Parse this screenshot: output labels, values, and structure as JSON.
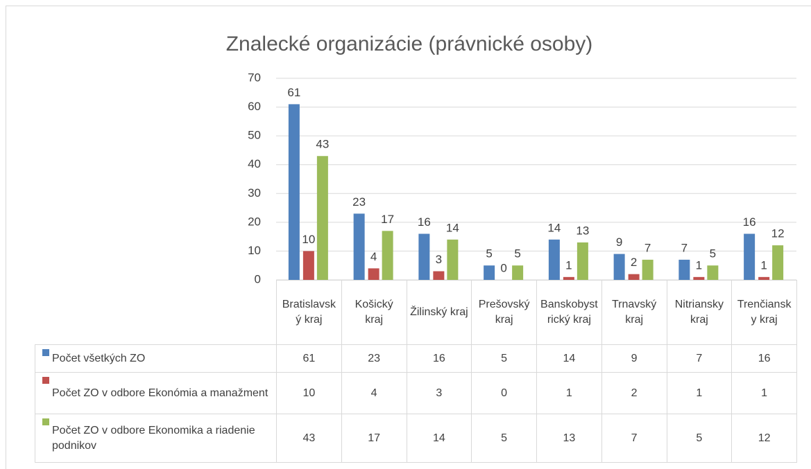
{
  "chart_data": {
    "type": "bar",
    "title": "Znalecké organizácie (právnické osoby)",
    "categories": [
      "Bratislavský kraj",
      "Košický kraj",
      "Žilinský kraj",
      "Prešovský kraj",
      "Banskobystrický kraj",
      "Trnavský kraj",
      "Nitriansky kraj",
      "Trenčiansky kraj"
    ],
    "series": [
      {
        "name": "Počet všetkých ZO",
        "color": "#4f81bd",
        "values": [
          61,
          23,
          16,
          5,
          14,
          9,
          7,
          16
        ]
      },
      {
        "name": "Počet ZO v odbore Ekonómia a manažment",
        "color": "#c0504d",
        "values": [
          10,
          4,
          3,
          0,
          1,
          2,
          1,
          1
        ]
      },
      {
        "name": "Počet ZO v odbore Ekonomika a riadenie podnikov",
        "color": "#9bbb59",
        "values": [
          43,
          17,
          14,
          5,
          13,
          7,
          5,
          12
        ]
      }
    ],
    "ylim": [
      0,
      70
    ],
    "yticks": [
      0,
      10,
      20,
      30,
      40,
      50,
      60,
      70
    ],
    "grid": true
  }
}
